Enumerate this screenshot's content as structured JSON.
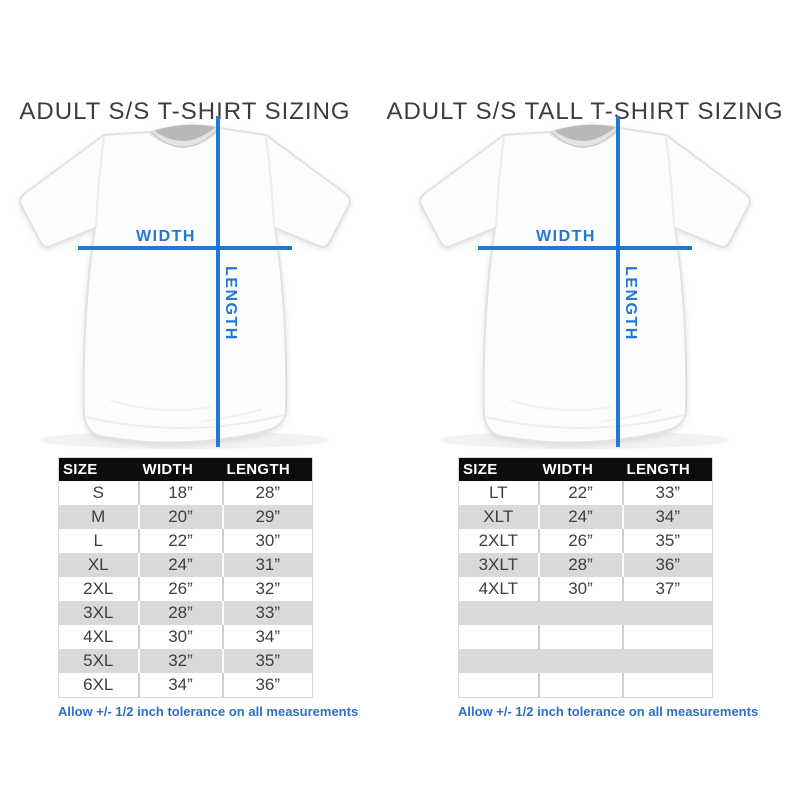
{
  "colors": {
    "accent_line": "#2178d8",
    "accent_note": "#2e6fc4",
    "header_bg": "#0d0d0d",
    "row_gray": "#d9d9d9"
  },
  "measure_labels": {
    "width": "WIDTH",
    "length": "LENGTH"
  },
  "panels": [
    {
      "title": "ADULT S/S T-SHIRT SIZING",
      "table": {
        "headers": [
          "SIZE",
          "WIDTH",
          "LENGTH"
        ],
        "rows": [
          [
            "S",
            "18”",
            "28”"
          ],
          [
            "M",
            "20”",
            "29”"
          ],
          [
            "L",
            "22”",
            "30”"
          ],
          [
            "XL",
            "24”",
            "31”"
          ],
          [
            "2XL",
            "26”",
            "32”"
          ],
          [
            "3XL",
            "28”",
            "33”"
          ],
          [
            "4XL",
            "30”",
            "34”"
          ],
          [
            "5XL",
            "32”",
            "35”"
          ],
          [
            "6XL",
            "34”",
            "36”"
          ]
        ]
      },
      "note": "Allow +/- 1/2 inch tolerance on all measurements"
    },
    {
      "title": "ADULT S/S TALL T-SHIRT SIZING",
      "table": {
        "headers": [
          "SIZE",
          "WIDTH",
          "LENGTH"
        ],
        "rows": [
          [
            "LT",
            "22”",
            "33”"
          ],
          [
            "XLT",
            "24”",
            "34”"
          ],
          [
            "2XLT",
            "26”",
            "35”"
          ],
          [
            "3XLT",
            "28”",
            "36”"
          ],
          [
            "4XLT",
            "30”",
            "37”"
          ],
          [
            "",
            "",
            ""
          ],
          [
            "",
            "",
            ""
          ],
          [
            "",
            "",
            ""
          ],
          [
            "",
            "",
            ""
          ]
        ]
      },
      "note": "Allow +/- 1/2 inch tolerance on all measurements"
    }
  ],
  "chart_data": {
    "type": "table",
    "tables": [
      {
        "title": "ADULT S/S T-SHIRT SIZING",
        "columns": [
          "SIZE",
          "WIDTH",
          "LENGTH"
        ],
        "rows": [
          [
            "S",
            18,
            28
          ],
          [
            "M",
            20,
            29
          ],
          [
            "L",
            22,
            30
          ],
          [
            "XL",
            24,
            31
          ],
          [
            "2XL",
            26,
            32
          ],
          [
            "3XL",
            28,
            33
          ],
          [
            "4XL",
            30,
            34
          ],
          [
            "5XL",
            32,
            35
          ],
          [
            "6XL",
            34,
            36
          ]
        ],
        "units": "inches"
      },
      {
        "title": "ADULT S/S TALL T-SHIRT SIZING",
        "columns": [
          "SIZE",
          "WIDTH",
          "LENGTH"
        ],
        "rows": [
          [
            "LT",
            22,
            33
          ],
          [
            "XLT",
            24,
            34
          ],
          [
            "2XLT",
            26,
            35
          ],
          [
            "3XLT",
            28,
            36
          ],
          [
            "4XLT",
            30,
            37
          ]
        ],
        "units": "inches"
      }
    ]
  }
}
